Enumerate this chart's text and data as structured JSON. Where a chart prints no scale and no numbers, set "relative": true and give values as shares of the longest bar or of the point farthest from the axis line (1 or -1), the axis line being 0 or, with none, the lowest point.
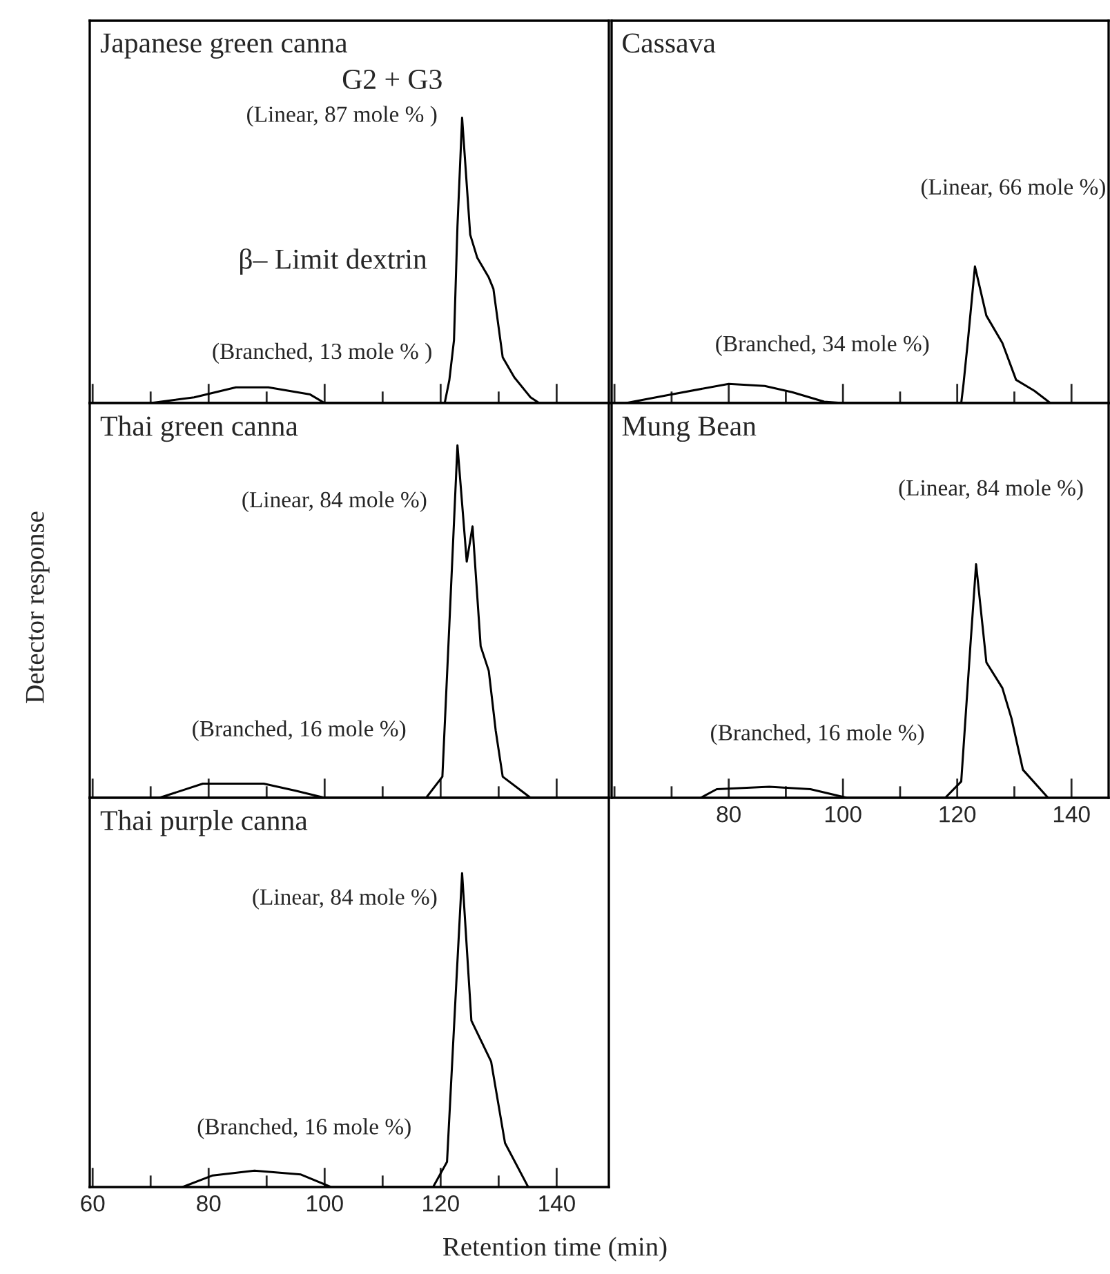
{
  "chart_data": [
    {
      "type": "line",
      "title": "Japanese green canna",
      "annotations": [
        "G2 + G3",
        "(Linear, 87 mole % )",
        "β– Limit dextrin",
        "(Branched, 13 mole % )"
      ],
      "relative": true,
      "xlim": [
        59.5,
        149
      ],
      "xticks": [
        60,
        {
          "value": 70,
          "label": null
        },
        80,
        {
          "value": 90,
          "label": null
        },
        100,
        {
          "value": 110,
          "label": null
        },
        120,
        {
          "value": 130,
          "label": null
        },
        140
      ],
      "tick_labels": false,
      "x": [
        70,
        77.5,
        84.7,
        90.3,
        97.5,
        100,
        120.7,
        121.5,
        122.3,
        122.9,
        123.7,
        125.1,
        126.3,
        128.3,
        129.1,
        130.7,
        132.7,
        135.5,
        137
      ],
      "series": [
        {
          "color": "#000000",
          "values": [
            0,
            0.02,
            0.055,
            0.055,
            0.03,
            0,
            0,
            0.08,
            0.22,
            0.62,
            1,
            0.59,
            0.51,
            0.44,
            0.4,
            0.16,
            0.09,
            0.02,
            0
          ]
        }
      ]
    },
    {
      "type": "line",
      "title": "Cassava",
      "annotations": [
        "(Linear, 66 mole %)",
        "(Branched, 34 mole %)"
      ],
      "relative": true,
      "xlim": [
        59.5,
        146.5
      ],
      "xticks": [
        60,
        {
          "value": 70,
          "label": null
        },
        80,
        {
          "value": 90,
          "label": null
        },
        100,
        {
          "value": 110,
          "label": null
        },
        120,
        {
          "value": 130,
          "label": null
        },
        140
      ],
      "tick_labels": false,
      "x": [
        62,
        69.5,
        80,
        86.3,
        91.1,
        96.7,
        100,
        120.7,
        121.1,
        121.9,
        123.1,
        125.1,
        127.9,
        130.3,
        133.5,
        136.3
      ],
      "series": [
        {
          "color": "#000000",
          "values": [
            0,
            0.06,
            0.14,
            0.125,
            0.08,
            0.01,
            0,
            0,
            0.14,
            0.47,
            1,
            0.64,
            0.44,
            0.17,
            0.09,
            0
          ]
        }
      ]
    },
    {
      "type": "line",
      "title": "Thai green canna",
      "annotations": [
        "(Linear, 84 mole %)",
        "(Branched, 16 mole %)"
      ],
      "relative": true,
      "xlim": [
        59.5,
        149
      ],
      "xticks": [
        60,
        {
          "value": 70,
          "label": null
        },
        80,
        {
          "value": 90,
          "label": null
        },
        100,
        {
          "value": 110,
          "label": null
        },
        120,
        {
          "value": 130,
          "label": null
        },
        140
      ],
      "tick_labels": false,
      "x": [
        71.5,
        79,
        89.5,
        95,
        100,
        117.5,
        120.3,
        121.5,
        122.9,
        124.5,
        125.5,
        126.9,
        128.3,
        129.5,
        130.7,
        135.5
      ],
      "series": [
        {
          "color": "#000000",
          "values": [
            0,
            0.04,
            0.04,
            0.02,
            0,
            0,
            0.06,
            0.49,
            1,
            0.67,
            0.77,
            0.43,
            0.36,
            0.19,
            0.06,
            0
          ]
        }
      ]
    },
    {
      "type": "line",
      "title": "Mung Bean",
      "annotations": [
        "(Linear, 84 mole %)",
        "(Branched, 16 mole %)"
      ],
      "relative": true,
      "xlim": [
        59.5,
        146.5
      ],
      "xticks": [
        {
          "value": 60,
          "label": null
        },
        {
          "value": 70,
          "label": null
        },
        80,
        {
          "value": 90,
          "label": null
        },
        100,
        {
          "value": 110,
          "label": null
        },
        120,
        {
          "value": 130,
          "label": null
        },
        140
      ],
      "x": [
        75.1,
        77.9,
        87.1,
        94.3,
        100.7,
        117.9,
        120.7,
        122.3,
        123.3,
        125.1,
        127.9,
        129.5,
        131.5,
        135.9
      ],
      "series": [
        {
          "color": "#000000",
          "values": [
            0,
            0.037,
            0.047,
            0.037,
            0,
            0,
            0.07,
            0.65,
            1,
            0.58,
            0.47,
            0.34,
            0.12,
            0
          ]
        }
      ]
    },
    {
      "type": "line",
      "title": "Thai purple canna",
      "annotations": [
        "(Linear, 84 mole %)",
        "(Branched, 16 mole %)"
      ],
      "relative": true,
      "xlim": [
        59.5,
        149
      ],
      "xticks": [
        60,
        {
          "value": 70,
          "label": null
        },
        80,
        {
          "value": 90,
          "label": null
        },
        100,
        {
          "value": 110,
          "label": null
        },
        120,
        {
          "value": 130,
          "label": null
        },
        140
      ],
      "xlabel": "Retention time (min)",
      "ylabel": "Detector response",
      "x": [
        75.5,
        80.7,
        87.9,
        95.9,
        101.1,
        118.7,
        121.1,
        122.7,
        123.7,
        125.3,
        128.7,
        131.1,
        135.1
      ],
      "series": [
        {
          "color": "#000000",
          "values": [
            0,
            0.037,
            0.052,
            0.04,
            0,
            0,
            0.08,
            0.65,
            1,
            0.53,
            0.4,
            0.14,
            0
          ]
        }
      ]
    }
  ]
}
